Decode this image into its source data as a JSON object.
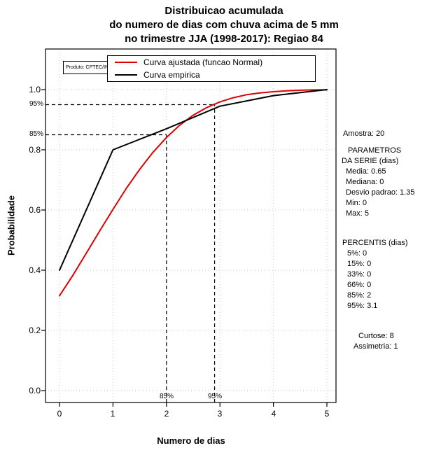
{
  "title": {
    "lines": [
      "Distribuicao acumulada",
      "do numero de dias com chuva acima de 5 mm",
      "no trimestre JJA (1998-2017): Regiao 84"
    ]
  },
  "plot": {
    "product_label": "Produto: CPTEC/INPE",
    "legend": [
      {
        "label": "Curva ajustada (funcao Normal)",
        "color": "#dd0000"
      },
      {
        "label": "Curva empirica",
        "color": "#000000"
      }
    ],
    "x_axis": {
      "label": "Numero de dias",
      "ticks": [
        "0",
        "1",
        "2",
        "3",
        "4",
        "5"
      ]
    },
    "y_axis": {
      "label": "Probabilidade",
      "ticks": [
        "0.0",
        "0.2",
        "0.4",
        "0.6",
        "0.8",
        "1.0"
      ]
    },
    "percentile_labels": {
      "left_95": "95%",
      "left_85": "85%",
      "bottom_85": "85%",
      "bottom_95": "95%"
    },
    "grid_color": "#c8c8c8"
  },
  "stats_panel": {
    "amostra": "Amostra: 20",
    "parametros_header1": "PARAMETROS",
    "parametros_header2": "DA SERIE (dias)",
    "media": "Media: 0.65",
    "mediana": "Mediana: 0",
    "desvio": "Desvio padrao: 1.35",
    "min": "Min: 0",
    "max": "Max: 5",
    "percentis_header": "PERCENTIS (dias)",
    "p5": "5%: 0",
    "p15": "15%: 0",
    "p33": "33%: 0",
    "p66": "66%: 0",
    "p85": "85%: 2",
    "p95": "95%: 3.1",
    "curtose": "Curtose: 8",
    "assimetria": "Assimetria: 1"
  },
  "chart_data": {
    "type": "line",
    "title": "Distribuicao acumulada do numero de dias com chuva acima de 5 mm no trimestre JJA (1998-2017): Regiao 84",
    "xlabel": "Numero de dias",
    "ylabel": "Probabilidade",
    "xlim": [
      0,
      5
    ],
    "ylim": [
      0,
      1
    ],
    "grid": true,
    "legend_position": "top-inside",
    "series": [
      {
        "name": "Curva ajustada (funcao Normal)",
        "color": "#dd0000",
        "x": [
          0,
          0.25,
          0.5,
          0.75,
          1,
          1.25,
          1.5,
          1.75,
          2,
          2.25,
          2.5,
          2.75,
          3,
          3.25,
          3.5,
          3.75,
          4,
          4.25,
          4.5,
          4.75,
          5
        ],
        "y": [
          0.315,
          0.383,
          0.456,
          0.53,
          0.602,
          0.672,
          0.735,
          0.792,
          0.841,
          0.882,
          0.915,
          0.94,
          0.959,
          0.973,
          0.983,
          0.989,
          0.993,
          0.996,
          0.998,
          0.999,
          0.999
        ]
      },
      {
        "name": "Curva empirica",
        "color": "#000000",
        "x": [
          0,
          1,
          2,
          3,
          4,
          5
        ],
        "y": [
          0.4,
          0.8,
          0.87,
          0.945,
          0.98,
          1.0
        ]
      }
    ],
    "reference_lines": [
      {
        "label": "85%",
        "x": 2,
        "y": 0.85
      },
      {
        "label": "95%",
        "x": 2.9,
        "y": 0.95
      }
    ]
  }
}
